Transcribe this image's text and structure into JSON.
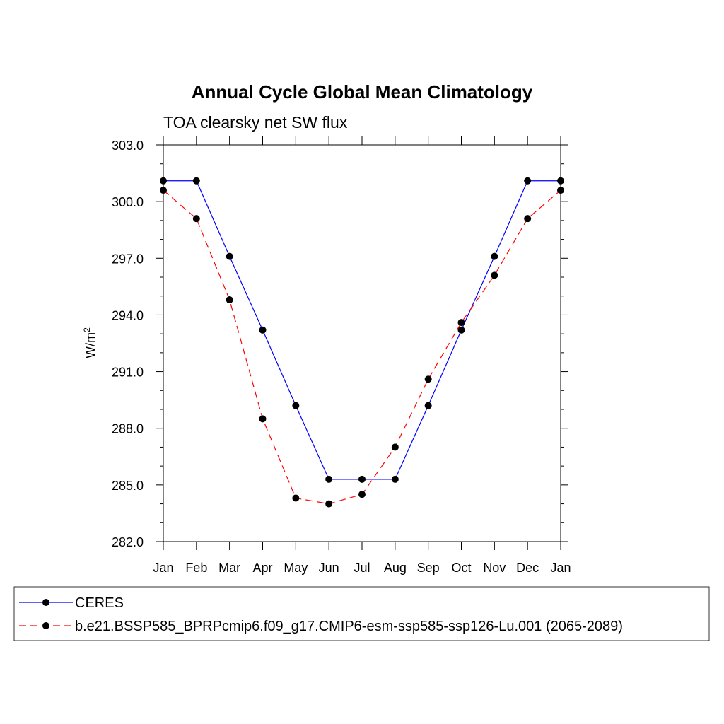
{
  "chart_data": {
    "type": "line",
    "title": "Annual Cycle Global Mean Climatology",
    "subtitle": "TOA clearsky net SW flux",
    "ylabel": "W/m",
    "ylabel_superscript": "2",
    "ylim": [
      282.0,
      303.0
    ],
    "y_ticks": [
      "282.0",
      "285.0",
      "288.0",
      "291.0",
      "294.0",
      "297.0",
      "300.0",
      "303.0"
    ],
    "categories": [
      "Jan",
      "Feb",
      "Mar",
      "Apr",
      "May",
      "Jun",
      "Jul",
      "Aug",
      "Sep",
      "Oct",
      "Nov",
      "Dec",
      "Jan"
    ],
    "series": [
      {
        "name": "CERES",
        "color": "#0000ff",
        "dash": "solid",
        "values": [
          301.1,
          301.1,
          297.1,
          293.2,
          289.2,
          285.3,
          285.3,
          285.3,
          289.2,
          293.2,
          297.1,
          301.1,
          301.1
        ]
      },
      {
        "name": "b.e21.BSSP585_BPRPcmip6.f09_g17.CMIP6-esm-ssp585-ssp126-Lu.001 (2065-2089)",
        "color": "#ff0000",
        "dash": "dashed",
        "values": [
          300.6,
          299.1,
          294.8,
          288.5,
          284.3,
          284.0,
          284.5,
          287.0,
          290.6,
          293.6,
          296.1,
          299.1,
          300.6
        ]
      }
    ],
    "grid": false,
    "legend_position": "bottom"
  }
}
